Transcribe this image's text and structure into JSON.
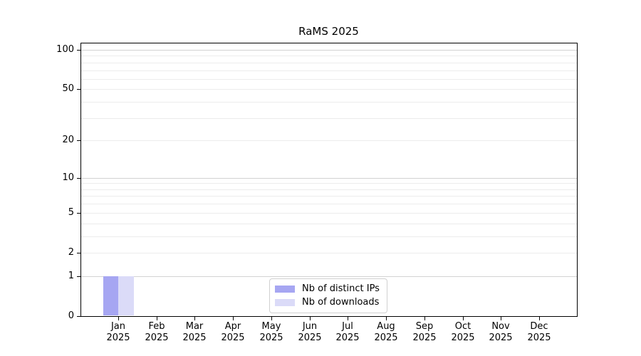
{
  "title": "RaMS 2025",
  "legend": {
    "items": [
      {
        "label": "Nb of distinct IPs",
        "color": "#a6a6f2"
      },
      {
        "label": "Nb of downloads",
        "color": "#dbdbf8"
      }
    ],
    "border_color": "#d0d0d0"
  },
  "chart_data": {
    "type": "bar",
    "title": "RaMS 2025",
    "xlabel": "",
    "ylabel": "",
    "categories": [
      "Jan 2025",
      "Feb 2025",
      "Mar 2025",
      "Apr 2025",
      "May 2025",
      "Jun 2025",
      "Jul 2025",
      "Aug 2025",
      "Sep 2025",
      "Oct 2025",
      "Nov 2025",
      "Dec 2025"
    ],
    "series": [
      {
        "name": "Nb of distinct IPs",
        "color": "#a6a6f2",
        "values": [
          1,
          0,
          0,
          0,
          0,
          0,
          0,
          0,
          0,
          0,
          0,
          0
        ]
      },
      {
        "name": "Nb of downloads",
        "color": "#dbdbf8",
        "values": [
          1,
          0,
          0,
          0,
          0,
          0,
          0,
          0,
          0,
          0,
          0,
          0
        ]
      }
    ],
    "yscale": "log1p",
    "ylim": [
      0,
      112
    ],
    "yticks_labeled": [
      0,
      1,
      2,
      5,
      10,
      20,
      50,
      100
    ],
    "ygrid_major": [
      1,
      10,
      100
    ],
    "ygrid_minor": [
      2,
      3,
      4,
      5,
      6,
      7,
      8,
      9,
      20,
      30,
      40,
      50,
      60,
      70,
      80,
      90
    ],
    "grid": "horizontal",
    "legend_position": "inside lower center"
  },
  "colors": {
    "bar_distinct_ips": "#a6a6f2",
    "bar_downloads": "#dbdbf8",
    "grid_major": "#d2d2d2",
    "grid_minor": "#ececec",
    "spine": "#000000",
    "text": "#000000",
    "background": "#ffffff"
  }
}
